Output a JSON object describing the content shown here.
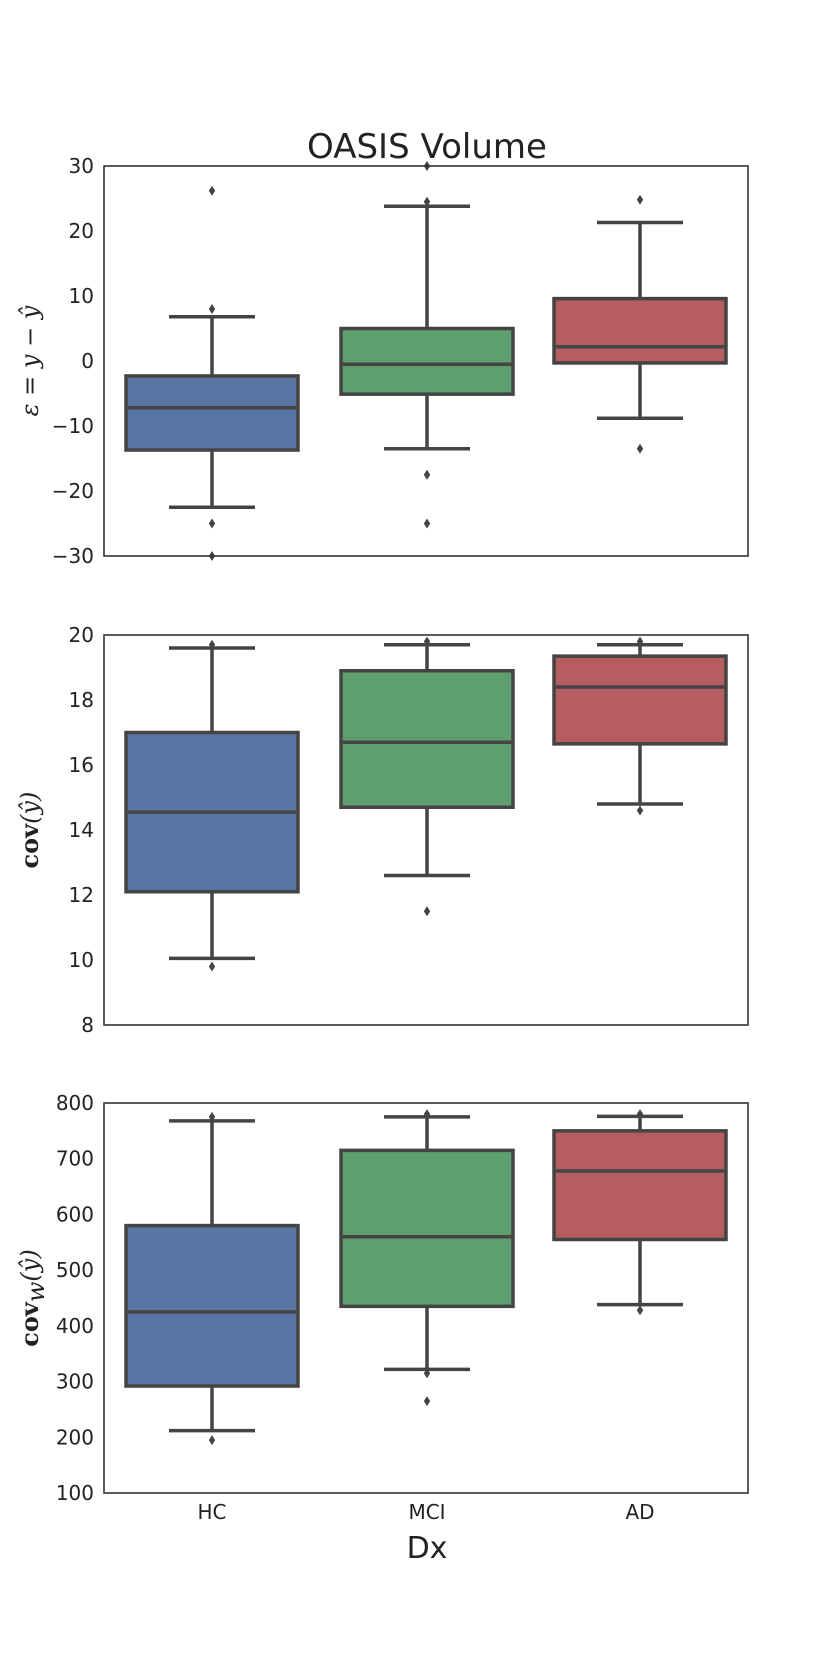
{
  "chart_data": {
    "title": "OASIS Volume",
    "xlabel": "Dx",
    "categories": [
      "HC",
      "MCI",
      "AD"
    ],
    "colors": [
      "#5875a4",
      "#5f9e6e",
      "#b55d60"
    ],
    "line_color": "#444444",
    "panels": [
      {
        "type": "box",
        "ylabel_parts": [
          {
            "text": "ε = y − ŷ",
            "style": "italic"
          }
        ],
        "ylim": [
          -30,
          30
        ],
        "yticks": [
          -30,
          -20,
          -10,
          0,
          10,
          20,
          30
        ],
        "ytick_labels": [
          "−30",
          "−20",
          "−10",
          "0",
          "10",
          "20",
          "30"
        ],
        "boxes": [
          {
            "category": "HC",
            "whislo": -22.5,
            "q1": -13.7,
            "med": -7.2,
            "q3": -2.3,
            "whishi": 6.8,
            "fliers": [
              26.2,
              8.0,
              -25.0,
              -30.0
            ]
          },
          {
            "category": "MCI",
            "whislo": -13.5,
            "q1": -5.1,
            "med": -0.5,
            "q3": 5.0,
            "whishi": 23.8,
            "fliers": [
              30.0,
              24.5,
              -17.5,
              -25.0
            ]
          },
          {
            "category": "AD",
            "whislo": -8.8,
            "q1": -0.3,
            "med": 2.2,
            "q3": 9.6,
            "whishi": 21.3,
            "fliers": [
              24.8,
              -13.5
            ]
          }
        ]
      },
      {
        "type": "box",
        "ylabel_parts": [
          {
            "text": "cov",
            "style": "bold"
          },
          {
            "text": "(ŷ)",
            "style": "italic"
          }
        ],
        "ylim": [
          8,
          20
        ],
        "yticks": [
          8,
          10,
          12,
          14,
          16,
          18,
          20
        ],
        "ytick_labels": [
          "8",
          "10",
          "12",
          "14",
          "16",
          "18",
          "20"
        ],
        "boxes": [
          {
            "category": "HC",
            "whislo": 10.05,
            "q1": 12.1,
            "med": 14.55,
            "q3": 17.0,
            "whishi": 19.6,
            "fliers": [
              9.8,
              19.7
            ]
          },
          {
            "category": "MCI",
            "whislo": 12.6,
            "q1": 14.7,
            "med": 16.7,
            "q3": 18.9,
            "whishi": 19.7,
            "fliers": [
              11.5,
              19.8
            ]
          },
          {
            "category": "AD",
            "whislo": 14.8,
            "q1": 16.65,
            "med": 18.4,
            "q3": 19.35,
            "whishi": 19.7,
            "fliers": [
              14.6,
              19.8
            ]
          }
        ]
      },
      {
        "type": "box",
        "ylabel_parts": [
          {
            "text": "cov",
            "style": "bold"
          },
          {
            "text": "w",
            "style": "sub"
          },
          {
            "text": "(ŷ)",
            "style": "italic"
          }
        ],
        "ylim": [
          100,
          800
        ],
        "yticks": [
          100,
          200,
          300,
          400,
          500,
          600,
          700,
          800
        ],
        "ytick_labels": [
          "100",
          "200",
          "300",
          "400",
          "500",
          "600",
          "700",
          "800"
        ],
        "boxes": [
          {
            "category": "HC",
            "whislo": 212,
            "q1": 292,
            "med": 425,
            "q3": 580,
            "whishi": 768,
            "fliers": [
              195,
              775
            ]
          },
          {
            "category": "MCI",
            "whislo": 322,
            "q1": 435,
            "med": 560,
            "q3": 715,
            "whishi": 775,
            "fliers": [
              265,
              315,
              780
            ]
          },
          {
            "category": "AD",
            "whislo": 438,
            "q1": 555,
            "med": 678,
            "q3": 750,
            "whishi": 776,
            "fliers": [
              428,
              780
            ]
          }
        ]
      }
    ]
  }
}
